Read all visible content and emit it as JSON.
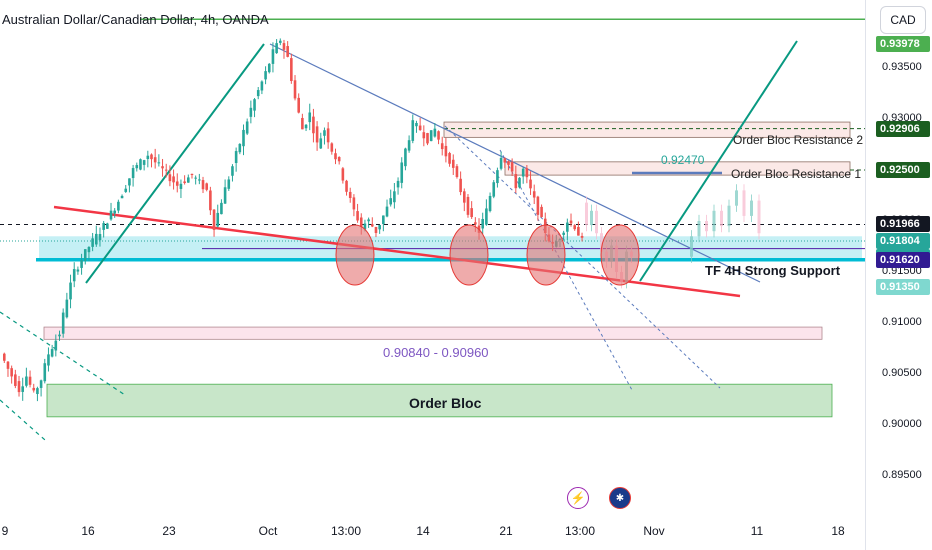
{
  "header": {
    "title": "Australian Dollar/Canadian Dollar, 4h, OANDA"
  },
  "axis": {
    "currency": "CAD",
    "ticks": [
      "0.93500",
      "0.93000",
      "0.92500",
      "0.92000",
      "0.91500",
      "0.91000",
      "0.90500",
      "0.90000",
      "0.89500"
    ],
    "price_labels": [
      {
        "text": "0.93978",
        "color": "#4caf50"
      },
      {
        "text": "0.92906",
        "color": "#1b5e20"
      },
      {
        "text": "0.92500",
        "color": "#1b5e20"
      },
      {
        "text": "0.91966",
        "color": "#131722"
      },
      {
        "text": "0.91804",
        "color": "#26a69a"
      },
      {
        "text": "02:23:35",
        "color": "#26a69a"
      },
      {
        "text": "0.91620",
        "color": "#311b92"
      },
      {
        "text": "0.91350",
        "color": "#7fd8cf"
      }
    ]
  },
  "x_axis": {
    "ticks": [
      "9",
      "16",
      "23",
      "Oct",
      "13:00",
      "14",
      "21",
      "13:00",
      "Nov",
      "11",
      "18"
    ]
  },
  "annotations": {
    "order_bloc_res_2": "Order Bloc Resistance 2",
    "order_bloc_res_1": "Order Bloc Resistance 1",
    "price_92470": "0.92470",
    "tf_support": "TF 4H Strong Support",
    "zone_label": "0.90840 - 0.90960",
    "order_bloc": "Order Bloc"
  },
  "colors": {
    "up": "#26a69a",
    "down": "#ef5350",
    "trend_green": "#089981",
    "support_red": "#f23645",
    "support_cyan": "#00bcd4",
    "resistance_blue": "#5b7bbd",
    "support_zone": "#b2ebf2",
    "order_bloc_green": "#c8e6c9",
    "top_line": "#4caf50"
  },
  "chart_data": {
    "type": "candlestick",
    "title": "Australian Dollar/Canadian Dollar, 4h, OANDA",
    "ylabel": "CAD",
    "ylim": [
      0.8925,
      0.938
    ],
    "y_ticks": [
      0.935,
      0.93,
      0.925,
      0.92,
      0.915,
      0.91,
      0.905,
      0.9,
      0.895
    ],
    "x_ticks": [
      "9",
      "16",
      "23",
      "Oct",
      "13:00",
      "14",
      "21",
      "13:00",
      "Nov",
      "11",
      "18"
    ],
    "price_path": [
      [
        0,
        0.907
      ],
      [
        2,
        0.9055
      ],
      [
        5,
        0.9035
      ],
      [
        7,
        0.9048
      ],
      [
        9,
        0.903
      ],
      [
        11,
        0.9045
      ],
      [
        13,
        0.907
      ],
      [
        16,
        0.909
      ],
      [
        18,
        0.9125
      ],
      [
        20,
        0.915
      ],
      [
        24,
        0.9175
      ],
      [
        28,
        0.9195
      ],
      [
        32,
        0.922
      ],
      [
        36,
        0.925
      ],
      [
        40,
        0.9265
      ],
      [
        44,
        0.925
      ],
      [
        48,
        0.9235
      ],
      [
        52,
        0.9245
      ],
      [
        56,
        0.923
      ],
      [
        58,
        0.9195
      ],
      [
        60,
        0.922
      ],
      [
        64,
        0.9265
      ],
      [
        68,
        0.931
      ],
      [
        72,
        0.9345
      ],
      [
        74,
        0.9365
      ],
      [
        76,
        0.9378
      ],
      [
        78,
        0.936
      ],
      [
        80,
        0.932
      ],
      [
        82,
        0.929
      ],
      [
        84,
        0.9305
      ],
      [
        86,
        0.9275
      ],
      [
        88,
        0.929
      ],
      [
        90,
        0.927
      ],
      [
        92,
        0.9255
      ],
      [
        94,
        0.923
      ],
      [
        96,
        0.921
      ],
      [
        98,
        0.9195
      ],
      [
        100,
        0.92
      ],
      [
        102,
        0.919
      ],
      [
        104,
        0.9205
      ],
      [
        106,
        0.922
      ],
      [
        108,
        0.924
      ],
      [
        110,
        0.927
      ],
      [
        112,
        0.9295
      ],
      [
        114,
        0.929
      ],
      [
        116,
        0.928
      ],
      [
        118,
        0.929
      ],
      [
        120,
        0.927
      ],
      [
        122,
        0.926
      ],
      [
        124,
        0.924
      ],
      [
        126,
        0.922
      ],
      [
        128,
        0.92
      ],
      [
        130,
        0.919
      ],
      [
        132,
        0.921
      ],
      [
        134,
        0.924
      ],
      [
        136,
        0.9265
      ],
      [
        138,
        0.9255
      ],
      [
        140,
        0.9235
      ],
      [
        142,
        0.925
      ],
      [
        144,
        0.923
      ],
      [
        146,
        0.921
      ],
      [
        148,
        0.919
      ],
      [
        150,
        0.9175
      ],
      [
        152,
        0.9185
      ],
      [
        154,
        0.92
      ],
      [
        156,
        0.9195
      ],
      [
        158,
        0.918
      ]
    ],
    "levels": {
      "top": 0.93978,
      "order_bloc_resistance_2": 0.92906,
      "order_bloc_resistance_1": 0.925,
      "dashed_level": 0.91966,
      "current": 0.91804,
      "support": 0.9162,
      "low_label": 0.9135
    },
    "zones": [
      {
        "name": "Order Bloc Resistance 2",
        "from": 0.9282,
        "to": 0.9297
      },
      {
        "name": "Order Bloc Resistance 1",
        "from": 0.9245,
        "to": 0.9258
      },
      {
        "name": "TF 4H Strong Support",
        "from": 0.9162,
        "to": 0.9185
      },
      {
        "name": "0.90840 - 0.90960",
        "from": 0.9084,
        "to": 0.9096
      },
      {
        "name": "Order Bloc",
        "from": 0.9008,
        "to": 0.904
      }
    ]
  }
}
